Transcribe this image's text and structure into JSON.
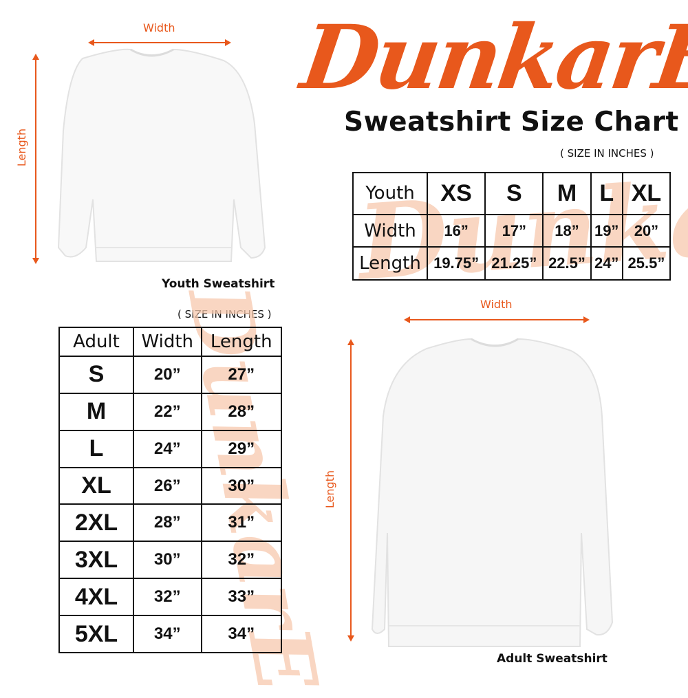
{
  "brand": {
    "logo": "DunkarE",
    "accent": "#e8581c",
    "watermark": "DunkarE"
  },
  "title": "Sweatshirt Size Chart",
  "youth": {
    "width_label": "Width",
    "length_label": "Length",
    "caption": "Youth Sweatshirt",
    "unit_note": "( SIZE IN INCHES )",
    "table": {
      "headers": [
        "Youth",
        "XS",
        "S",
        "M",
        "L",
        "XL"
      ],
      "rows": [
        [
          "Width",
          "16”",
          "17”",
          "18”",
          "19”",
          "20”"
        ],
        [
          "Length",
          "19.75”",
          "21.25”",
          "22.5”",
          "24”",
          "25.5”"
        ]
      ]
    }
  },
  "adult": {
    "width_label": "Width",
    "length_label": "Length",
    "caption": "Adult Sweatshirt",
    "unit_note": "( SIZE IN INCHES )",
    "table": {
      "headers": [
        "Adult",
        "Width",
        "Length"
      ],
      "rows": [
        [
          "S",
          "20”",
          "27”"
        ],
        [
          "M",
          "22”",
          "28”"
        ],
        [
          "L",
          "24”",
          "29”"
        ],
        [
          "XL",
          "26”",
          "30”"
        ],
        [
          "2XL",
          "28”",
          "31”"
        ],
        [
          "3XL",
          "30”",
          "32”"
        ],
        [
          "4XL",
          "32”",
          "33”"
        ],
        [
          "5XL",
          "34”",
          "34”"
        ]
      ]
    }
  }
}
